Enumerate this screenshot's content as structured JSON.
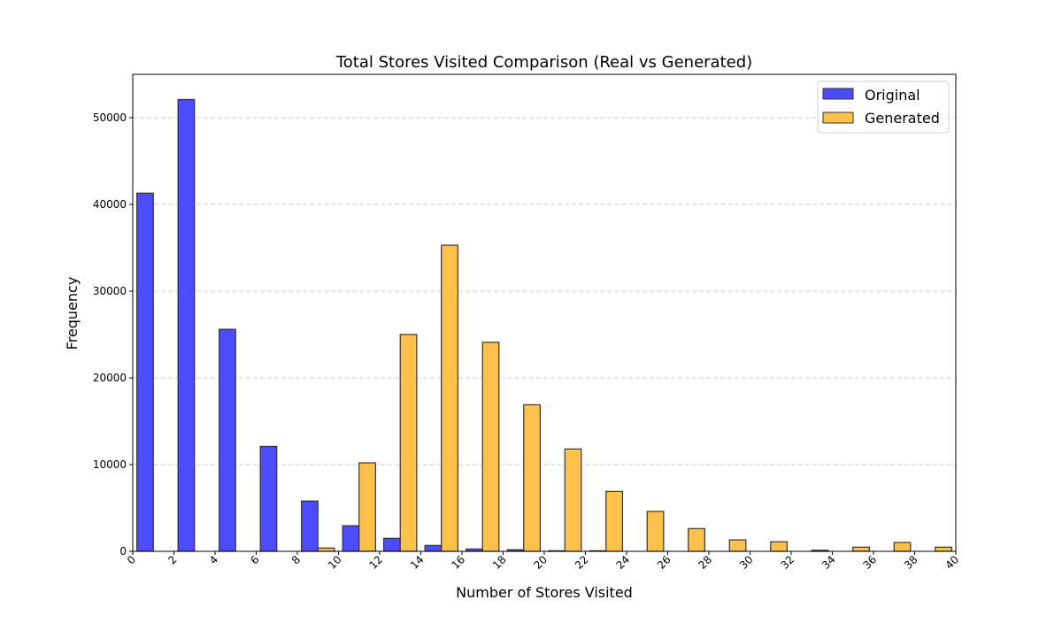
{
  "chart_data": {
    "type": "bar",
    "title": "Total Stores Visited Comparison (Real vs Generated)",
    "xlabel": "Number of Stores Visited",
    "ylabel": "Frequency",
    "xlim": [
      0,
      40
    ],
    "ylim": [
      0,
      55000
    ],
    "bin_width": 2,
    "bin_starts": [
      0,
      2,
      4,
      6,
      8,
      10,
      12,
      14,
      16,
      18,
      20,
      22,
      24,
      26,
      28,
      30,
      32,
      34,
      36,
      38
    ],
    "x_ticks": [
      "0",
      "2",
      "4",
      "6",
      "8",
      "10",
      "12",
      "14",
      "16",
      "18",
      "20",
      "22",
      "24",
      "26",
      "28",
      "30",
      "32",
      "34",
      "36",
      "38",
      "40"
    ],
    "y_ticks": [
      "0",
      "10000",
      "20000",
      "30000",
      "40000",
      "50000"
    ],
    "grid": "y dashed",
    "legend_position": "top-right",
    "series": [
      {
        "name": "Original",
        "color": "#4b4bff",
        "values": [
          41300,
          52100,
          25600,
          12100,
          5800,
          2950,
          1500,
          680,
          270,
          180,
          60,
          60,
          0,
          0,
          0,
          0,
          0,
          0,
          0,
          0
        ]
      },
      {
        "name": "Generated",
        "color": "#ffc04c",
        "values": [
          0,
          0,
          0,
          0,
          380,
          10200,
          25000,
          35300,
          24100,
          16900,
          11800,
          6900,
          4600,
          2620,
          1320,
          1100,
          120,
          480,
          1020,
          480
        ]
      }
    ]
  }
}
